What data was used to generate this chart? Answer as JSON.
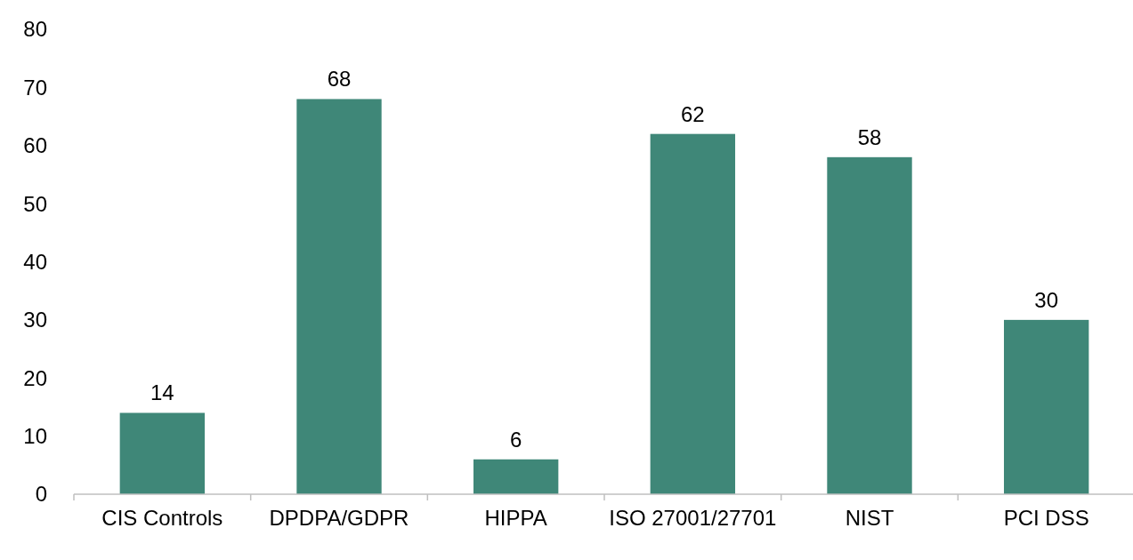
{
  "chart_data": {
    "type": "bar",
    "categories": [
      "CIS Controls",
      "DPDPA/GDPR",
      "HIPPA",
      "ISO 27001/27701",
      "NIST",
      "PCI DSS"
    ],
    "values": [
      14,
      68,
      6,
      62,
      58,
      30
    ],
    "color": "#3f8778",
    "ylim": [
      0,
      80
    ],
    "yticks": [
      0,
      10,
      20,
      30,
      40,
      50,
      60,
      70,
      80
    ],
    "grid": false,
    "data_labels": true
  }
}
